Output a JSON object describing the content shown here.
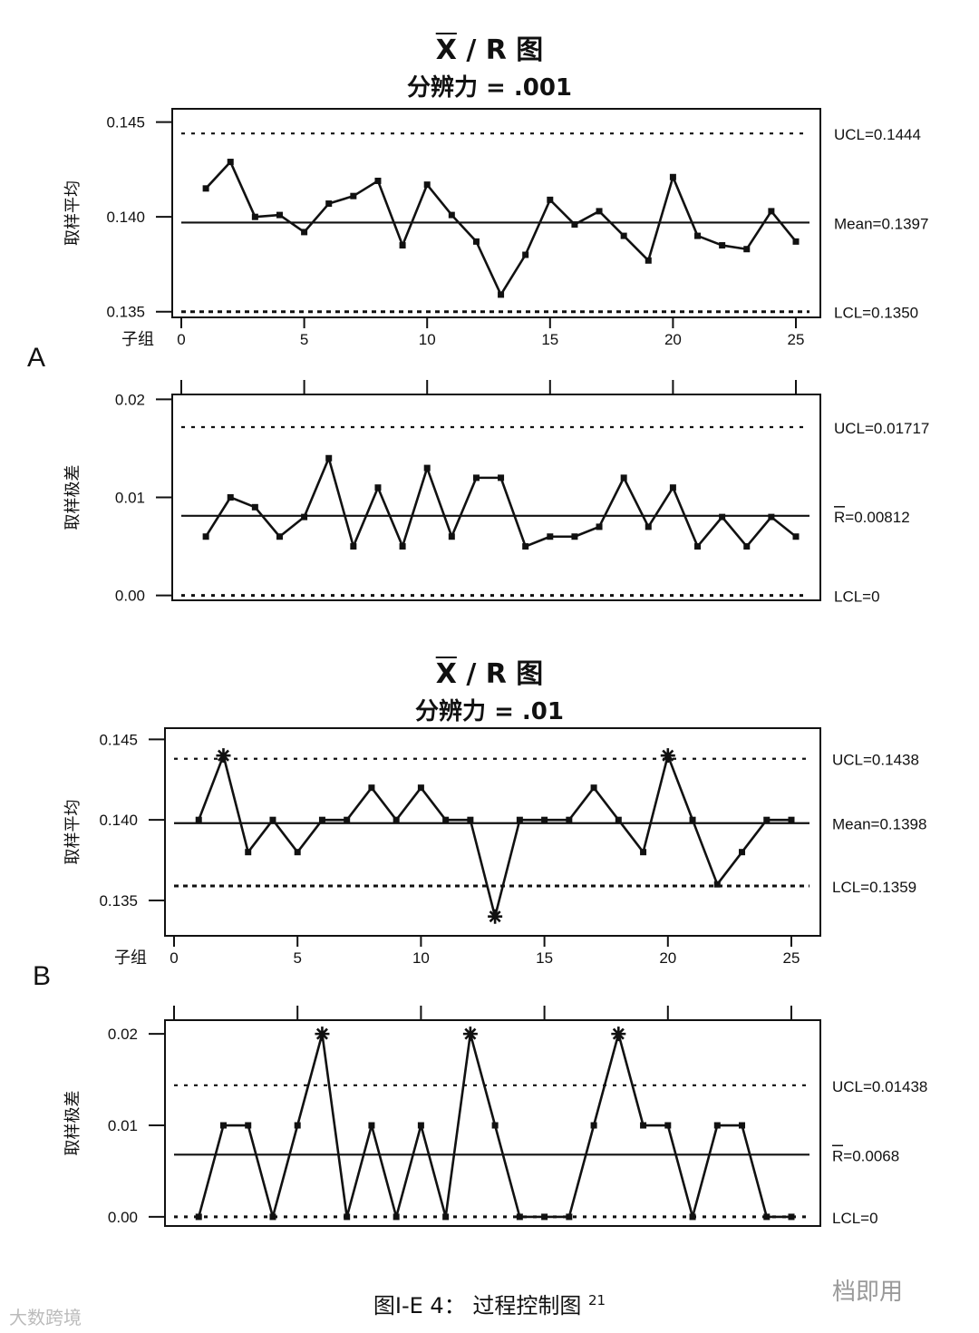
{
  "charts": [
    {
      "id": "A",
      "section_label": "A",
      "title_x": "X",
      "title_rest": " / R 图",
      "subtitle": "分辨力 = .001",
      "xbar": {
        "type": "line",
        "ylabel": "取样平均",
        "xlabel": "子组",
        "ylim": [
          0.1347,
          0.1457
        ],
        "yticks": [
          0.145,
          0.14,
          0.135
        ],
        "ytick_labels": [
          "0.145",
          "0.140",
          "0.135"
        ],
        "xticks": [
          0,
          5,
          10,
          15,
          20,
          25
        ],
        "ucl": 0.1444,
        "mean": 0.1397,
        "lcl": 0.135,
        "ucl_label": "UCL=0.1444",
        "mean_label": "Mean=0.1397",
        "lcl_label": "LCL=0.1350",
        "x": [
          1,
          2,
          3,
          4,
          5,
          6,
          7,
          8,
          9,
          10,
          11,
          12,
          13,
          14,
          15,
          16,
          17,
          18,
          19,
          20,
          21,
          22,
          23,
          24,
          25
        ],
        "values": [
          0.1415,
          0.1429,
          0.14,
          0.1401,
          0.1392,
          0.1407,
          0.1411,
          0.1419,
          0.1385,
          0.1417,
          0.1401,
          0.1387,
          0.1359,
          0.138,
          0.1409,
          0.1396,
          0.1403,
          0.139,
          0.1377,
          0.1421,
          0.139,
          0.1385,
          0.1383,
          0.1403,
          0.1387
        ],
        "out_of_control": []
      },
      "range": {
        "type": "line",
        "ylabel": "取样极差",
        "ylim": [
          -0.0005,
          0.0205
        ],
        "yticks": [
          0.02,
          0.01,
          0.0
        ],
        "ytick_labels": [
          "0.02",
          "0.01",
          "0.00"
        ],
        "ucl": 0.01717,
        "mean": 0.00812,
        "lcl": 0,
        "ucl_label": "UCL=0.01717",
        "mean_label": "R=0.00812",
        "lcl_label": "LCL=0",
        "x": [
          1,
          2,
          3,
          4,
          5,
          6,
          7,
          8,
          9,
          10,
          11,
          12,
          13,
          14,
          15,
          16,
          17,
          18,
          19,
          20,
          21,
          22,
          23,
          24,
          25
        ],
        "values": [
          0.006,
          0.01,
          0.009,
          0.006,
          0.008,
          0.014,
          0.005,
          0.011,
          0.005,
          0.013,
          0.006,
          0.012,
          0.012,
          0.005,
          0.006,
          0.006,
          0.007,
          0.012,
          0.007,
          0.011,
          0.005,
          0.008,
          0.005,
          0.008,
          0.006
        ],
        "out_of_control": []
      }
    },
    {
      "id": "B",
      "section_label": "B",
      "title_x": "X",
      "title_rest": " / R 图",
      "subtitle": "分辨力 = .01",
      "xbar": {
        "type": "line",
        "ylabel": "取样平均",
        "xlabel": "子组",
        "ylim": [
          0.1328,
          0.1457
        ],
        "yticks": [
          0.145,
          0.14,
          0.135
        ],
        "ytick_labels": [
          "0.145",
          "0.140",
          "0.135"
        ],
        "xticks": [
          0,
          5,
          10,
          15,
          20,
          25
        ],
        "ucl": 0.1438,
        "mean": 0.1398,
        "lcl": 0.1359,
        "ucl_label": "UCL=0.1438",
        "mean_label": "Mean=0.1398",
        "lcl_label": "LCL=0.1359",
        "x": [
          1,
          2,
          3,
          4,
          5,
          6,
          7,
          8,
          9,
          10,
          11,
          12,
          13,
          14,
          15,
          16,
          17,
          18,
          19,
          20,
          21,
          22,
          23,
          24,
          25
        ],
        "values": [
          0.14,
          0.144,
          0.138,
          0.14,
          0.138,
          0.14,
          0.14,
          0.142,
          0.14,
          0.142,
          0.14,
          0.14,
          0.134,
          0.14,
          0.14,
          0.14,
          0.142,
          0.14,
          0.138,
          0.144,
          0.14,
          0.136,
          0.138,
          0.14,
          0.14
        ],
        "out_of_control": [
          2,
          13,
          20
        ]
      },
      "range": {
        "type": "line",
        "ylabel": "取样极差",
        "ylim": [
          -0.001,
          0.0215
        ],
        "yticks": [
          0.02,
          0.01,
          0.0
        ],
        "ytick_labels": [
          "0.02",
          "0.01",
          "0.00"
        ],
        "ucl": 0.01438,
        "mean": 0.0068,
        "lcl": 0,
        "ucl_label": "UCL=0.01438",
        "mean_label": "R=0.0068",
        "lcl_label": "LCL=0",
        "x": [
          1,
          2,
          3,
          4,
          5,
          6,
          7,
          8,
          9,
          10,
          11,
          12,
          13,
          14,
          15,
          16,
          17,
          18,
          19,
          20,
          21,
          22,
          23,
          24,
          25
        ],
        "values": [
          0.0,
          0.01,
          0.01,
          0.0,
          0.01,
          0.02,
          0.0,
          0.01,
          0.0,
          0.01,
          0.0,
          0.02,
          0.01,
          0.0,
          0.0,
          0.0,
          0.01,
          0.02,
          0.01,
          0.01,
          0.0,
          0.01,
          0.01,
          0.0,
          0.0
        ],
        "out_of_control": [
          6,
          12,
          18
        ]
      }
    }
  ],
  "caption": "图I-E 4： 过程控制图",
  "caption_ref": "21",
  "watermark_left": "大数跨境",
  "watermark_right": "档即用"
}
